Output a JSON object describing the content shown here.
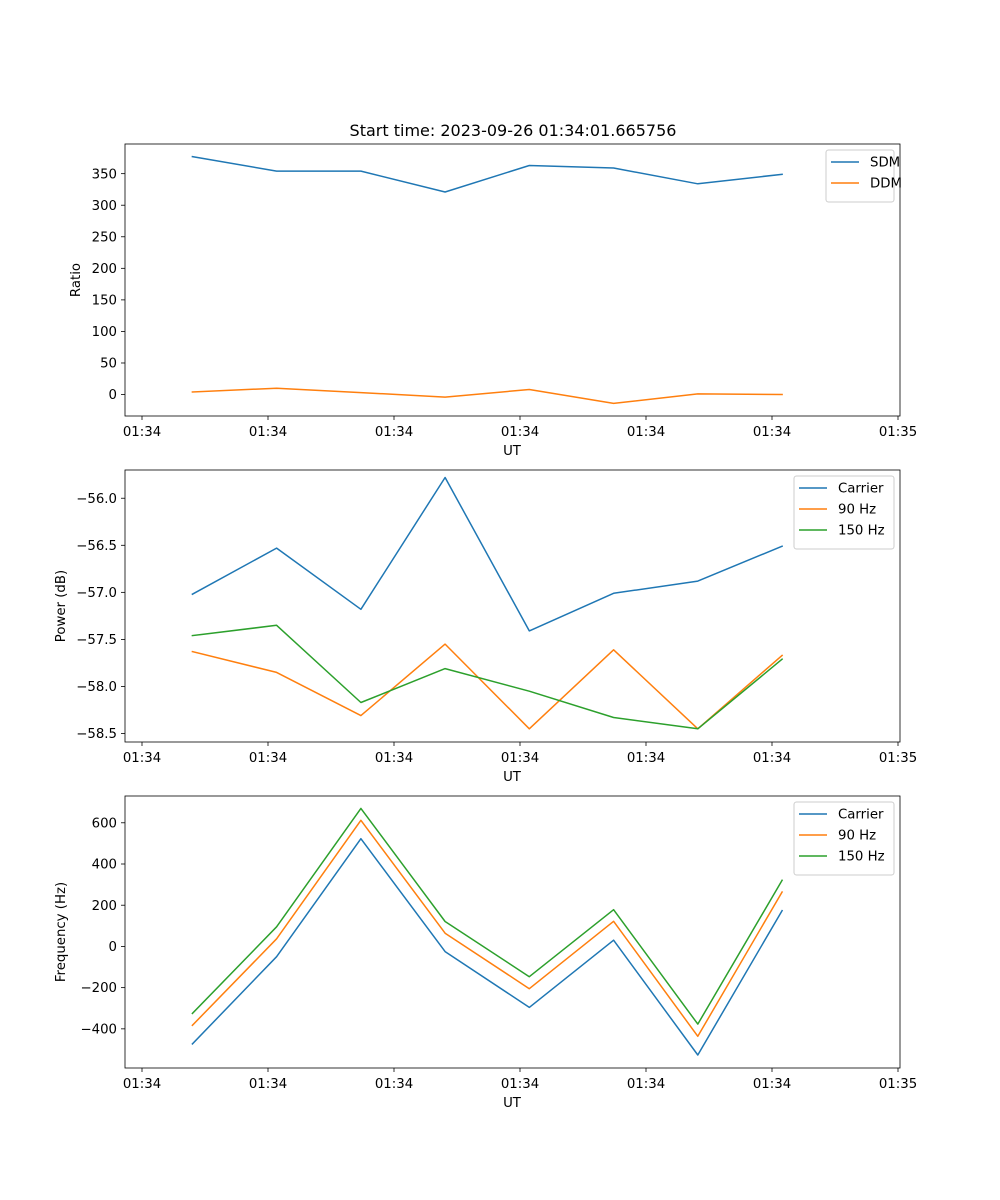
{
  "figure": {
    "title": "Start time: 2023-09-26 01:34:01.665756"
  },
  "chart_data": [
    {
      "type": "line",
      "title": "Start time: 2023-09-26 01:34:01.665756",
      "xlabel": "UT",
      "ylabel": "Ratio",
      "x_ticks": [
        "01:34",
        "01:34",
        "01:34",
        "01:34",
        "01:34",
        "01:34",
        "01:35"
      ],
      "x": [
        1,
        2,
        3,
        4,
        5,
        6,
        7,
        8
      ],
      "xlim": [
        0.2,
        9.4
      ],
      "ylim": [
        -34,
        397
      ],
      "y_ticks": [
        0,
        50,
        100,
        150,
        200,
        250,
        300,
        350
      ],
      "grid": false,
      "legend_position": "top-right",
      "series": [
        {
          "name": "SDM",
          "color": "#1f77b4",
          "values": [
            377,
            354,
            354,
            321,
            363,
            359,
            334,
            349
          ]
        },
        {
          "name": "DDM",
          "color": "#ff7f0e",
          "values": [
            4,
            10,
            3,
            -4,
            8,
            -14,
            1,
            0
          ]
        }
      ]
    },
    {
      "type": "line",
      "title": "",
      "xlabel": "UT",
      "ylabel": "Power (dB)",
      "x_ticks": [
        "01:34",
        "01:34",
        "01:34",
        "01:34",
        "01:34",
        "01:34",
        "01:35"
      ],
      "x": [
        1,
        2,
        3,
        4,
        5,
        6,
        7,
        8
      ],
      "xlim": [
        0.2,
        9.4
      ],
      "ylim": [
        -58.59,
        -55.7
      ],
      "y_ticks": [
        -56.0,
        -56.5,
        -57.0,
        -57.5,
        -58.0,
        -58.5
      ],
      "grid": false,
      "legend_position": "top-right",
      "series": [
        {
          "name": "Carrier",
          "color": "#1f77b4",
          "values": [
            -57.02,
            -56.53,
            -57.18,
            -55.78,
            -57.41,
            -57.01,
            -56.88,
            -56.51
          ]
        },
        {
          "name": "90 Hz",
          "color": "#ff7f0e",
          "values": [
            -57.63,
            -57.85,
            -58.31,
            -57.55,
            -58.45,
            -57.61,
            -58.45,
            -57.67
          ]
        },
        {
          "name": "150 Hz",
          "color": "#2ca02c",
          "values": [
            -57.46,
            -57.35,
            -58.17,
            -57.81,
            -58.05,
            -58.33,
            -58.45,
            -57.71
          ]
        }
      ]
    },
    {
      "type": "line",
      "title": "",
      "xlabel": "UT",
      "ylabel": "Frequency (Hz)",
      "x_ticks": [
        "01:34",
        "01:34",
        "01:34",
        "01:34",
        "01:34",
        "01:34",
        "01:35"
      ],
      "x": [
        1,
        2,
        3,
        4,
        5,
        6,
        7,
        8
      ],
      "xlim": [
        0.2,
        9.4
      ],
      "ylim": [
        -590,
        730
      ],
      "y_ticks": [
        600,
        400,
        200,
        0,
        -200,
        -400
      ],
      "grid": false,
      "legend_position": "top-right",
      "series": [
        {
          "name": "Carrier",
          "color": "#1f77b4",
          "values": [
            -473,
            -50,
            523,
            -25,
            -296,
            30,
            -527,
            174
          ]
        },
        {
          "name": "90 Hz",
          "color": "#ff7f0e",
          "values": [
            -383,
            37,
            612,
            64,
            -205,
            122,
            -436,
            264
          ]
        },
        {
          "name": "150 Hz",
          "color": "#2ca02c",
          "values": [
            -325,
            95,
            670,
            121,
            -147,
            178,
            -377,
            321
          ]
        }
      ]
    }
  ]
}
